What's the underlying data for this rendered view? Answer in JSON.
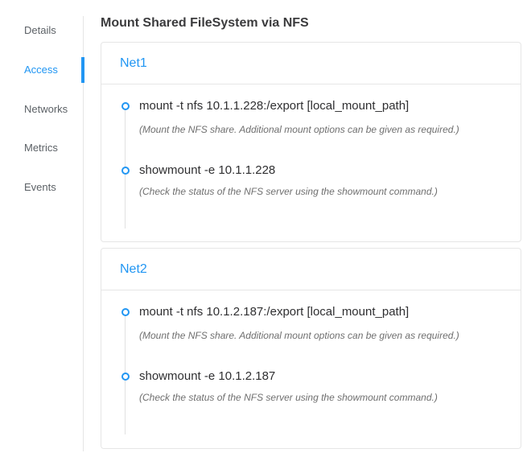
{
  "page_title": "Mount Shared FileSystem via NFS",
  "colors": {
    "accent_blue": "#2196f3",
    "card_border": "#e6e6e6"
  },
  "sidebar": {
    "items": [
      {
        "label": "Details",
        "active": false
      },
      {
        "label": "Access",
        "active": true
      },
      {
        "label": "Networks",
        "active": false
      },
      {
        "label": "Metrics",
        "active": false
      },
      {
        "label": "Events",
        "active": false
      }
    ]
  },
  "cards": [
    {
      "title": "Net1",
      "items": [
        {
          "command": "mount -t nfs 10.1.1.228:/export [local_mount_path]",
          "description": "(Mount the NFS share. Additional mount options can be given as required.)"
        },
        {
          "command": "showmount -e 10.1.1.228",
          "description": "(Check the status of the NFS server using the showmount command.)"
        }
      ]
    },
    {
      "title": "Net2",
      "items": [
        {
          "command": "mount -t nfs 10.1.2.187:/export [local_mount_path]",
          "description": "(Mount the NFS share. Additional mount options can be given as required.)"
        },
        {
          "command": "showmount -e 10.1.2.187",
          "description": "(Check the status of the NFS server using the showmount command.)"
        }
      ]
    }
  ]
}
